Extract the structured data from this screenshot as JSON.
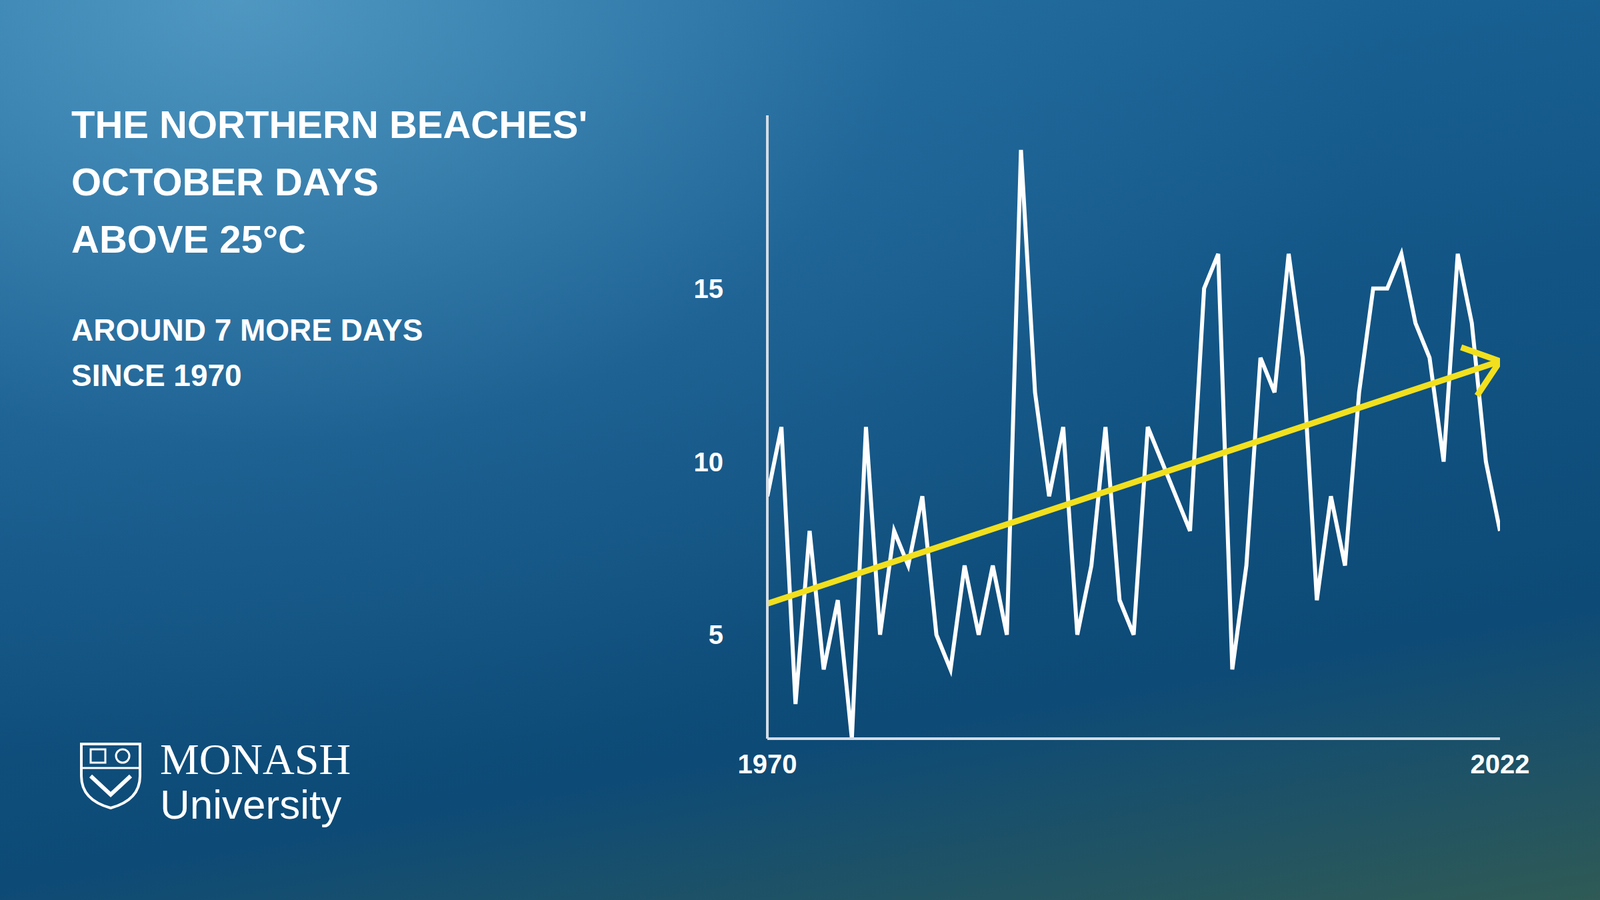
{
  "chart_data": {
    "type": "line",
    "title": "THE NORTHERN BEACHES' OCTOBER DAYS ABOVE 25°C",
    "subtitle": "AROUND 7 MORE DAYS SINCE 1970",
    "x": [
      1970,
      1971,
      1972,
      1973,
      1974,
      1975,
      1976,
      1977,
      1978,
      1979,
      1980,
      1981,
      1982,
      1983,
      1984,
      1985,
      1986,
      1987,
      1988,
      1989,
      1990,
      1991,
      1992,
      1993,
      1994,
      1995,
      1996,
      1997,
      1998,
      1999,
      2000,
      2001,
      2002,
      2003,
      2004,
      2005,
      2006,
      2007,
      2008,
      2009,
      2010,
      2011,
      2012,
      2013,
      2014,
      2015,
      2016,
      2017,
      2018,
      2019,
      2020,
      2021,
      2022
    ],
    "series": [
      {
        "color": "#ffffff",
        "values": [
          9,
          11,
          3,
          8,
          4,
          6,
          2,
          11,
          5,
          8,
          7,
          9,
          5,
          4,
          7,
          5,
          7,
          5,
          19,
          12,
          9,
          11,
          5,
          7,
          11,
          6,
          5,
          11,
          10,
          9,
          8,
          15,
          16,
          4,
          7,
          13,
          12,
          16,
          13,
          6,
          9,
          7,
          12,
          15,
          15,
          16,
          14,
          13,
          10,
          16,
          14,
          10,
          8
        ]
      },
      {
        "color": "#f2e01e",
        "marker": "arrow",
        "x": [
          1970,
          2022
        ],
        "values": [
          5.9,
          12.9
        ]
      }
    ],
    "xlim": [
      1970,
      2022
    ],
    "xticks": [
      1970,
      2022
    ],
    "ylim": [
      2,
      20
    ],
    "yticks": [
      5,
      10,
      15
    ],
    "grid": false,
    "logo_text": {
      "top": "MONASH",
      "bottom": "University"
    }
  }
}
